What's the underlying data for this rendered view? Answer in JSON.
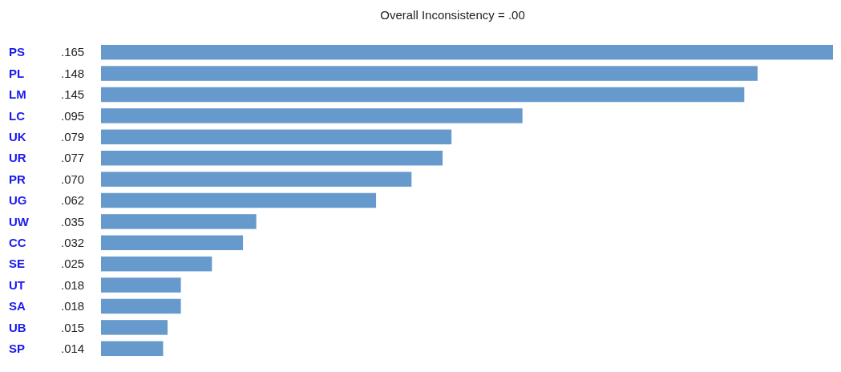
{
  "chart_data": {
    "type": "bar",
    "orientation": "horizontal",
    "title": "Overall Inconsistency = .00",
    "categories": [
      "PS",
      "PL",
      "LM",
      "LC",
      "UK",
      "UR",
      "PR",
      "UG",
      "UW",
      "CC",
      "SE",
      "UT",
      "SA",
      "UB",
      "SP"
    ],
    "values": [
      0.165,
      0.148,
      0.145,
      0.095,
      0.079,
      0.077,
      0.07,
      0.062,
      0.035,
      0.032,
      0.025,
      0.018,
      0.018,
      0.015,
      0.014
    ],
    "value_labels": [
      ".165",
      ".148",
      ".145",
      ".095",
      ".079",
      ".077",
      ".070",
      ".062",
      ".035",
      ".032",
      ".025",
      ".018",
      ".018",
      ".015",
      ".014"
    ],
    "color": "#6699cc"
  }
}
